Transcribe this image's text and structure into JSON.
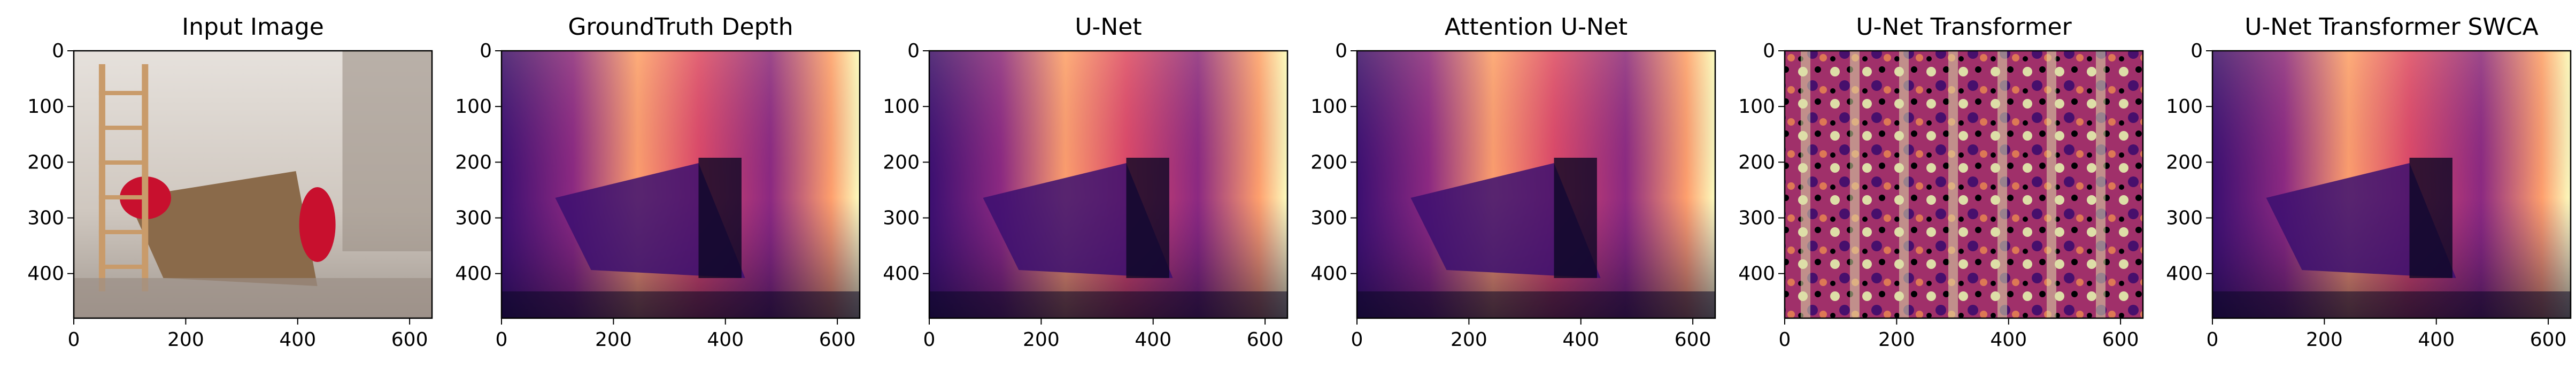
{
  "figure": {
    "panels": [
      {
        "title": "Input Image",
        "kind": "rgb",
        "palette": [
          "#e9e4df",
          "#c8bfb5",
          "#9b8f86",
          "#6f3d30",
          "#c8102e",
          "#8a6a4a"
        ]
      },
      {
        "title": "GroundTruth Depth",
        "kind": "depth",
        "palette": [
          "#0b0724",
          "#3b0f70",
          "#8c2981",
          "#de4968",
          "#fe9f6d",
          "#fcfdbf"
        ]
      },
      {
        "title": "U-Net",
        "kind": "depth",
        "palette": [
          "#0b0724",
          "#3b0f70",
          "#8c2981",
          "#de4968",
          "#fe9f6d",
          "#fcfdbf"
        ]
      },
      {
        "title": "Attention U-Net",
        "kind": "depth",
        "palette": [
          "#0b0724",
          "#3b0f70",
          "#8c2981",
          "#de4968",
          "#fe9f6d",
          "#fcfdbf"
        ]
      },
      {
        "title": "U-Net Transformer",
        "kind": "noisy",
        "palette": [
          "#000004",
          "#51127c",
          "#b73779",
          "#fc8961",
          "#fcfdbf"
        ]
      },
      {
        "title": "U-Net Transformer SWCA",
        "kind": "depth",
        "palette": [
          "#0b0724",
          "#3b0f70",
          "#8c2981",
          "#de4968",
          "#fe9f6d",
          "#fcfdbf"
        ]
      }
    ],
    "x_ticks": [
      0,
      200,
      400,
      600
    ],
    "y_ticks": [
      0,
      100,
      200,
      300,
      400
    ],
    "x_range": [
      0,
      640
    ],
    "y_range": [
      0,
      480
    ]
  }
}
